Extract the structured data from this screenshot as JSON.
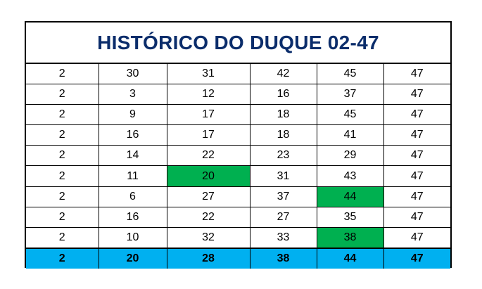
{
  "title": "HISTÓRICO DO DUQUE 02-47",
  "colors": {
    "title_text": "#0b2d6b",
    "highlight": "#00b050",
    "total_row": "#00b0f0"
  },
  "rows": [
    [
      "2",
      "30",
      "31",
      "42",
      "45",
      "47"
    ],
    [
      "2",
      "3",
      "12",
      "16",
      "37",
      "47"
    ],
    [
      "2",
      "9",
      "17",
      "18",
      "45",
      "47"
    ],
    [
      "2",
      "16",
      "17",
      "18",
      "41",
      "47"
    ],
    [
      "2",
      "14",
      "22",
      "23",
      "29",
      "47"
    ],
    [
      "2",
      "11",
      "20",
      "31",
      "43",
      "47"
    ],
    [
      "2",
      "6",
      "27",
      "37",
      "44",
      "47"
    ],
    [
      "2",
      "16",
      "22",
      "27",
      "35",
      "47"
    ],
    [
      "2",
      "10",
      "32",
      "33",
      "38",
      "47"
    ]
  ],
  "highlighted_cells": [
    {
      "row": 5,
      "col": 2
    },
    {
      "row": 6,
      "col": 4
    },
    {
      "row": 8,
      "col": 4
    }
  ],
  "summary_row": [
    "2",
    "20",
    "28",
    "38",
    "44",
    "47"
  ]
}
